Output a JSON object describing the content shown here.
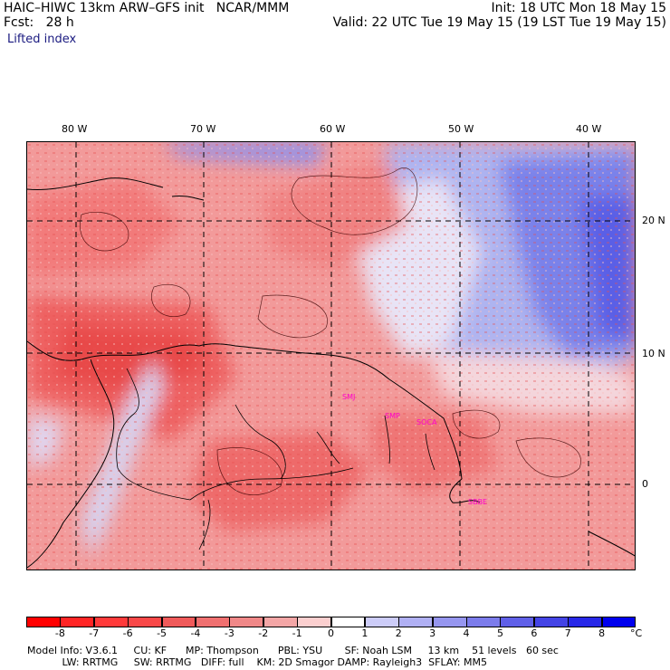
{
  "header": {
    "model_line": "HAIC–HIWC 13km ARW–GFS init   NCAR/MMM",
    "fcst_line": "Fcst:   28 h",
    "init_line": "Init: 18 UTC Mon 18 May 15",
    "valid_line": "Valid: 22 UTC Tue 19 May 15 (19 LST Tue 19 May 15)",
    "field_name": "Lifted index"
  },
  "map": {
    "lon_labels": [
      "80 W",
      "70 W",
      "60 W",
      "50 W",
      "40 W"
    ],
    "lat_labels": [
      "20 N",
      "10 N",
      "0"
    ],
    "stations": [
      "SMJ",
      "SMP",
      "SOCA",
      "SBBE"
    ],
    "colors": {
      "negative": "#e83030",
      "neutral": "#ffffff",
      "positive": "#2a2ae8"
    }
  },
  "colorbar": {
    "ticks": [
      "-8",
      "-7",
      "-6",
      "-5",
      "-4",
      "-3",
      "-2",
      "-1",
      "0",
      "1",
      "2",
      "3",
      "4",
      "5",
      "6",
      "7",
      "8"
    ],
    "unit": "°C",
    "colors": [
      "#ff0000",
      "#ff2525",
      "#ff3a3a",
      "#f84848",
      "#f05a5a",
      "#f07070",
      "#f08888",
      "#f4a6a6",
      "#fbcfcf",
      "#ffffff",
      "#ccccf8",
      "#b0b0f4",
      "#9696ef",
      "#7c7ceb",
      "#6060e8",
      "#4444e6",
      "#2828e8",
      "#0000ee"
    ]
  },
  "footer": {
    "line1": "Model Info: V3.6.1     CU: KF      MP: Thompson      PBL: YSU       SF: Noah LSM     13 km    51 levels   60 sec",
    "line2": "           LW: RRTMG     SW: RRTMG   DIFF: full    KM: 2D Smagor DAMP: Rayleigh3  SFLAY: MM5"
  }
}
